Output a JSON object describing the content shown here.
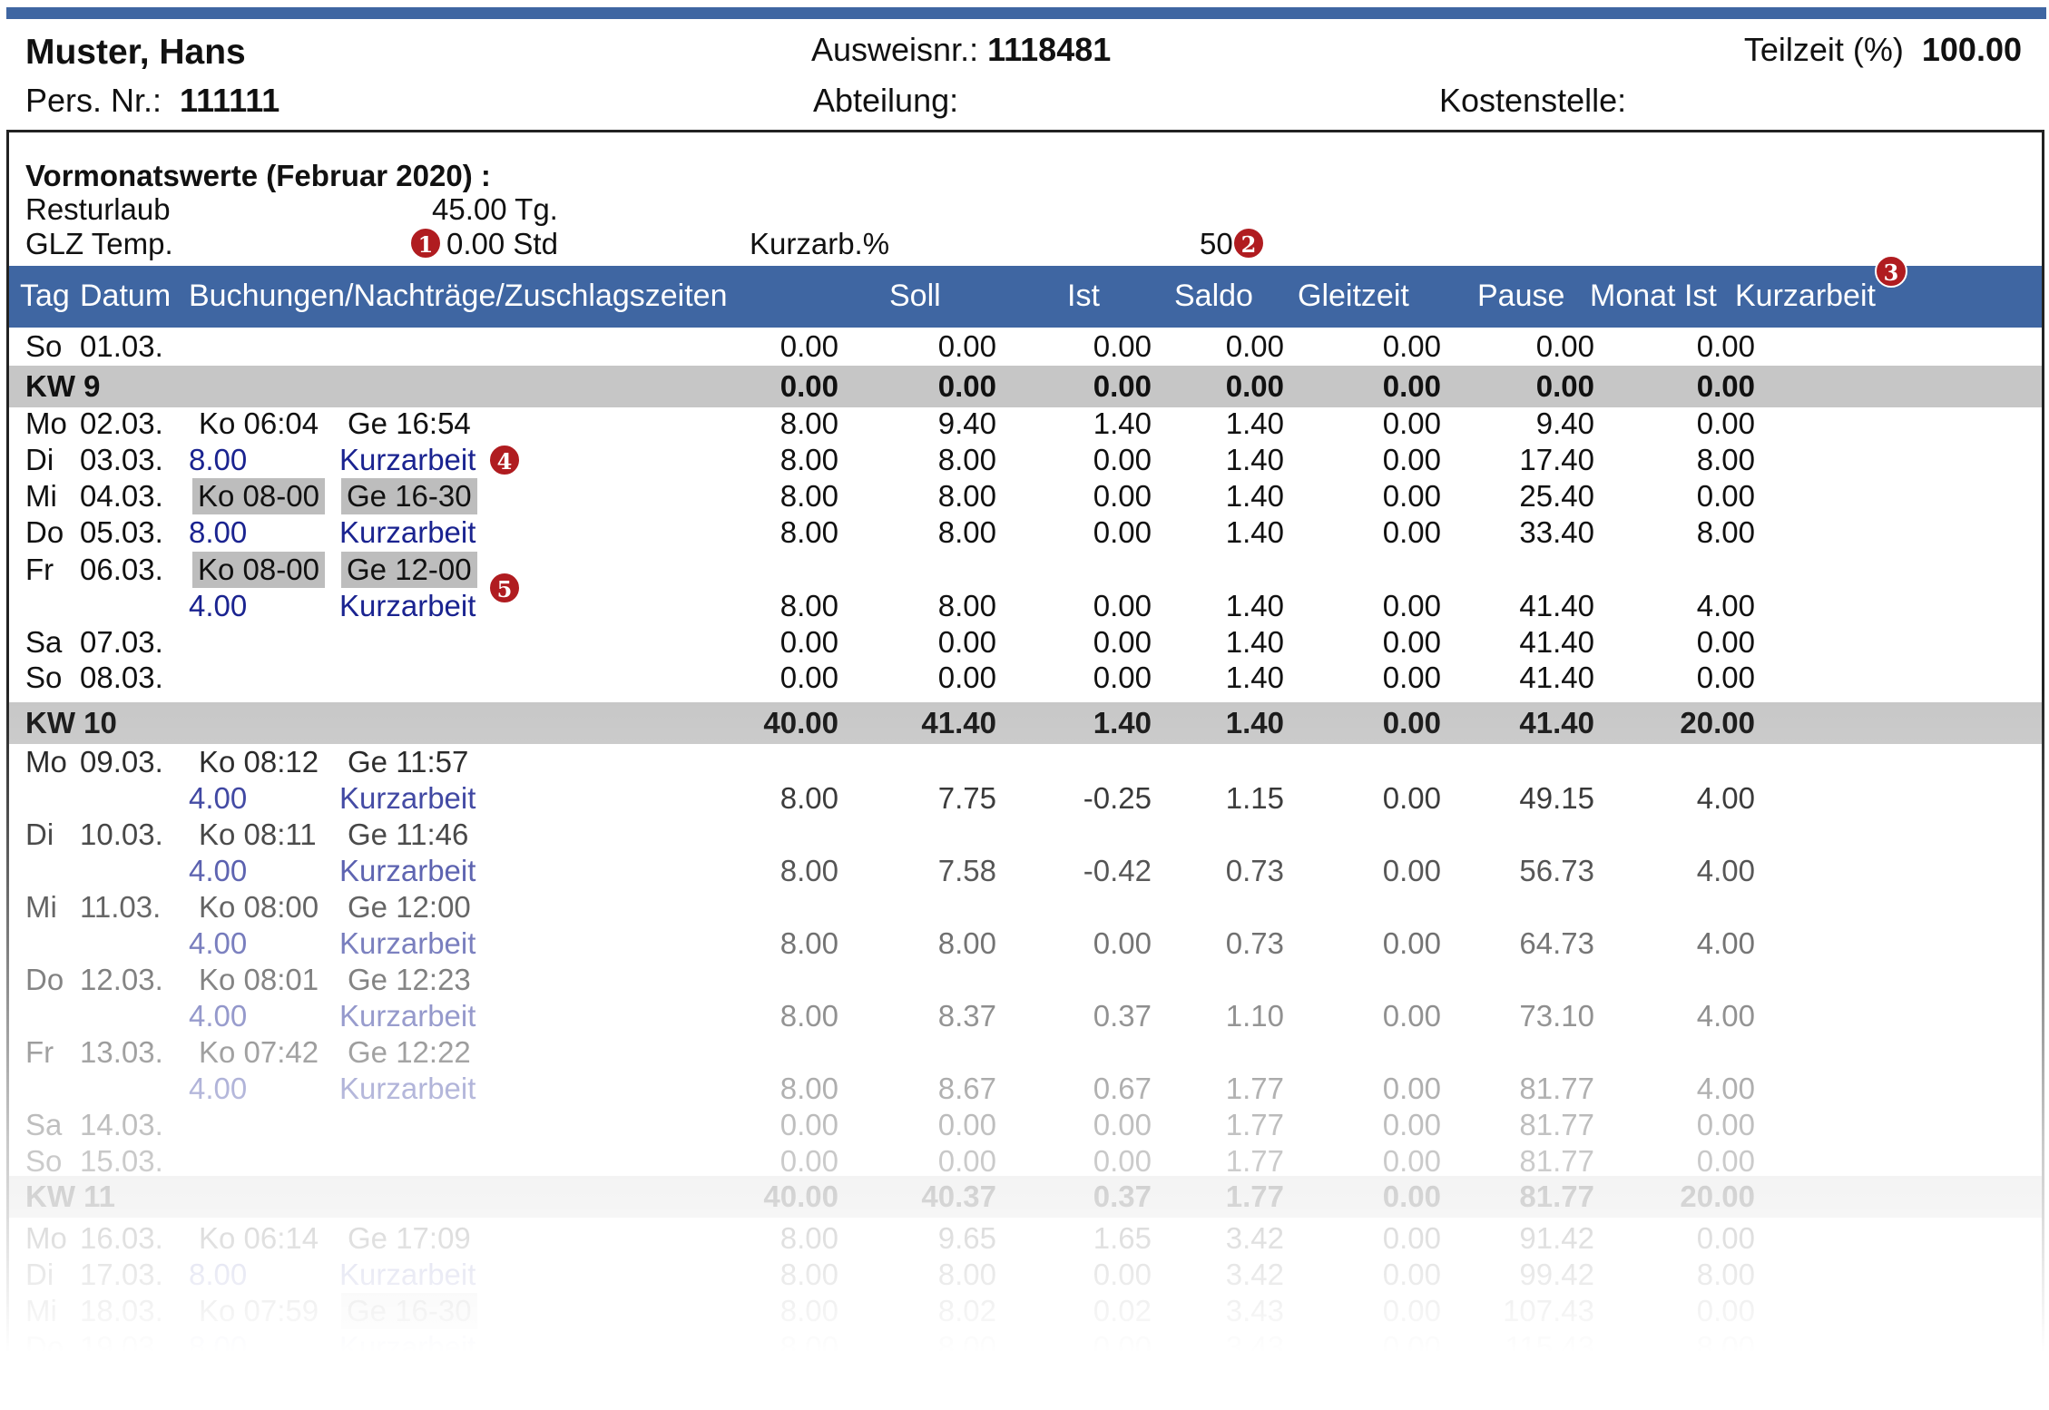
{
  "employee": {
    "name": "Muster, Hans",
    "persnr_label": "Pers. Nr.:",
    "persnr": "111111",
    "ausweis_label": "Ausweisnr.:",
    "ausweis": "1118481",
    "abteilung_label": "Abteilung:",
    "teilzeit_label": "Teilzeit (%)",
    "teilzeit": "100.00",
    "kostenstelle_label": "Kostenstelle:"
  },
  "vormonat": {
    "title": "Vormonatswerte (Februar 2020) :",
    "resturlaub_label": "Resturlaub",
    "resturlaub_value": "45.00",
    "resturlaub_unit": "Tg.",
    "glz_label": "GLZ Temp.",
    "glz_value": "0.00",
    "glz_unit": "Std",
    "kurzarb_label": "Kurzarb.%",
    "kurzarb_value": "50"
  },
  "badges": [
    "1",
    "2",
    "3",
    "4",
    "5"
  ],
  "columns": [
    "Tag",
    "Datum",
    "Buchungen/Nachträge/Zuschlagszeiten",
    "Soll",
    "Ist",
    "Saldo",
    "Gleitzeit",
    "Pause",
    "Monat Ist",
    "Kurzarbeit"
  ],
  "rows": [
    {
      "kind": "day",
      "tag": "So",
      "datum": "01.03.",
      "vals": [
        "0.00",
        "0.00",
        "0.00",
        "0.00",
        "0.00",
        "0.00",
        "0.00"
      ]
    },
    {
      "kind": "kw",
      "label": "KW 9",
      "vals": [
        "0.00",
        "0.00",
        "0.00",
        "0.00",
        "0.00",
        "0.00",
        "0.00"
      ]
    },
    {
      "kind": "day",
      "tag": "Mo",
      "datum": "02.03.",
      "b1": "Ko 06:04",
      "b2": "Ge 16:54",
      "vals": [
        "8.00",
        "9.40",
        "1.40",
        "1.40",
        "0.00",
        "9.40",
        "0.00"
      ]
    },
    {
      "kind": "day",
      "tag": "Di",
      "datum": "03.03.",
      "n1": "8.00",
      "n2": "Kurzarbeit",
      "vals": [
        "8.00",
        "8.00",
        "0.00",
        "1.40",
        "0.00",
        "17.40",
        "8.00"
      ]
    },
    {
      "kind": "day",
      "tag": "Mi",
      "datum": "04.03.",
      "h1": "Ko 08-00",
      "h2": "Ge 16-30",
      "vals": [
        "8.00",
        "8.00",
        "0.00",
        "1.40",
        "0.00",
        "25.40",
        "0.00"
      ]
    },
    {
      "kind": "day",
      "tag": "Do",
      "datum": "05.03.",
      "n1": "8.00",
      "n2": "Kurzarbeit",
      "vals": [
        "8.00",
        "8.00",
        "0.00",
        "1.40",
        "0.00",
        "33.40",
        "8.00"
      ]
    },
    {
      "kind": "day",
      "tag": "Fr",
      "datum": "06.03.",
      "h1": "Ko 08-00",
      "h2": "Ge 12-00"
    },
    {
      "kind": "day",
      "n1": "4.00",
      "n2": "Kurzarbeit",
      "vals": [
        "8.00",
        "8.00",
        "0.00",
        "1.40",
        "0.00",
        "41.40",
        "4.00"
      ]
    },
    {
      "kind": "day",
      "tag": "Sa",
      "datum": "07.03.",
      "vals": [
        "0.00",
        "0.00",
        "0.00",
        "1.40",
        "0.00",
        "41.40",
        "0.00"
      ]
    },
    {
      "kind": "day",
      "tag": "So",
      "datum": "08.03.",
      "vals": [
        "0.00",
        "0.00",
        "0.00",
        "1.40",
        "0.00",
        "41.40",
        "0.00"
      ]
    },
    {
      "kind": "kw",
      "label": "KW 10",
      "vals": [
        "40.00",
        "41.40",
        "1.40",
        "1.40",
        "0.00",
        "41.40",
        "20.00"
      ]
    },
    {
      "kind": "day",
      "tag": "Mo",
      "datum": "09.03.",
      "b1": "Ko 08:12",
      "b2": "Ge 11:57"
    },
    {
      "kind": "day",
      "n1": "4.00",
      "n2": "Kurzarbeit",
      "vals": [
        "8.00",
        "7.75",
        "-0.25",
        "1.15",
        "0.00",
        "49.15",
        "4.00"
      ]
    },
    {
      "kind": "day",
      "tag": "Di",
      "datum": "10.03.",
      "b1": "Ko 08:11",
      "b2": "Ge 11:46"
    },
    {
      "kind": "day",
      "n1": "4.00",
      "n2": "Kurzarbeit",
      "vals": [
        "8.00",
        "7.58",
        "-0.42",
        "0.73",
        "0.00",
        "56.73",
        "4.00"
      ]
    },
    {
      "kind": "day",
      "tag": "Mi",
      "datum": "11.03.",
      "b1": "Ko 08:00",
      "b2": "Ge 12:00"
    },
    {
      "kind": "day",
      "n1": "4.00",
      "n2": "Kurzarbeit",
      "vals": [
        "8.00",
        "8.00",
        "0.00",
        "0.73",
        "0.00",
        "64.73",
        "4.00"
      ]
    },
    {
      "kind": "day",
      "tag": "Do",
      "datum": "12.03.",
      "b1": "Ko 08:01",
      "b2": "Ge 12:23"
    },
    {
      "kind": "day",
      "n1": "4.00",
      "n2": "Kurzarbeit",
      "vals": [
        "8.00",
        "8.37",
        "0.37",
        "1.10",
        "0.00",
        "73.10",
        "4.00"
      ]
    },
    {
      "kind": "day",
      "tag": "Fr",
      "datum": "13.03.",
      "b1": "Ko 07:42",
      "b2": "Ge 12:22"
    },
    {
      "kind": "day",
      "n1": "4.00",
      "n2": "Kurzarbeit",
      "vals": [
        "8.00",
        "8.67",
        "0.67",
        "1.77",
        "0.00",
        "81.77",
        "4.00"
      ]
    },
    {
      "kind": "day",
      "tag": "Sa",
      "datum": "14.03.",
      "vals": [
        "0.00",
        "0.00",
        "0.00",
        "1.77",
        "0.00",
        "81.77",
        "0.00"
      ]
    },
    {
      "kind": "day",
      "tag": "So",
      "datum": "15.03.",
      "vals": [
        "0.00",
        "0.00",
        "0.00",
        "1.77",
        "0.00",
        "81.77",
        "0.00"
      ]
    },
    {
      "kind": "kw",
      "label": "KW 11",
      "vals": [
        "40.00",
        "40.37",
        "0.37",
        "1.77",
        "0.00",
        "81.77",
        "20.00"
      ]
    },
    {
      "kind": "day",
      "tag": "Mo",
      "datum": "16.03.",
      "b1": "Ko 06:14",
      "b2": "Ge 17:09",
      "vals": [
        "8.00",
        "9.65",
        "1.65",
        "3.42",
        "0.00",
        "91.42",
        "0.00"
      ]
    },
    {
      "kind": "day",
      "tag": "Di",
      "datum": "17.03.",
      "n1": "8.00",
      "n2": "Kurzarbeit",
      "vals": [
        "8.00",
        "8.00",
        "0.00",
        "3.42",
        "0.00",
        "99.42",
        "8.00"
      ]
    },
    {
      "kind": "day",
      "tag": "Mi",
      "datum": "18.03.",
      "b1": "Ko 07:59",
      "h2": "Ge 16-30",
      "vals": [
        "8.00",
        "8.02",
        "0.02",
        "3.43",
        "0.00",
        "107.43",
        "0.00"
      ]
    },
    {
      "kind": "day",
      "tag": "Do",
      "datum": "19.03.",
      "n1": "8.00",
      "n2": "Kurzarbeit",
      "vals": [
        "8.00",
        "8.00",
        "0.00",
        "3.43",
        "0.00",
        "115.43",
        "8.00"
      ]
    }
  ]
}
